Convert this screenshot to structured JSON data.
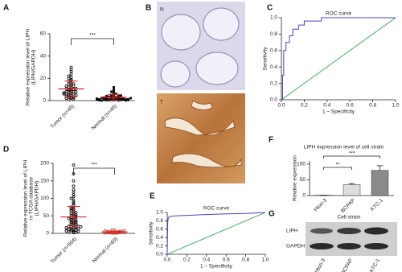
{
  "chart_data": [
    {
      "type": "dot",
      "panel": "A",
      "ylabel": [
        "Relative expression level of LIPH",
        "(LIPH/GAPDH)"
      ],
      "categories": [
        "Tumor (n=45)",
        "Normal (n=45)"
      ],
      "groups": [
        {
          "marker": "circle",
          "color": "#000000",
          "mean": 10.5,
          "sd": 7,
          "values": [
            2,
            3,
            4,
            5,
            5,
            6,
            6,
            7,
            7,
            8,
            8,
            8,
            9,
            9,
            10,
            10,
            10,
            11,
            11,
            12,
            12,
            13,
            14,
            15,
            16,
            17,
            18,
            19,
            20,
            21,
            22,
            24,
            26,
            28,
            30,
            1,
            1.5,
            2,
            3,
            4,
            5,
            6,
            7,
            13,
            15
          ]
        },
        {
          "marker": "square",
          "color": "#000000",
          "mean": 3,
          "sd": 2.5,
          "values": [
            0.5,
            0.5,
            0.8,
            1,
            1,
            1,
            1.2,
            1.5,
            1.5,
            2,
            2,
            2,
            2.5,
            3,
            3,
            3,
            3.5,
            4,
            4,
            4.5,
            5,
            5,
            6,
            7,
            8,
            9,
            10,
            12,
            1,
            0.3,
            0.2,
            0.4,
            0.6,
            0.7,
            0.9,
            1.1,
            1.3,
            1.8,
            2.2,
            2.8,
            0.1,
            0.2,
            0.3,
            0.5,
            0.8
          ]
        }
      ],
      "mean_color": "#e02020",
      "significance": "***",
      "ylim": [
        0,
        60
      ],
      "yticks": [
        0,
        20,
        40,
        60
      ]
    },
    {
      "type": "roc",
      "panel": "C",
      "title": "ROC curve",
      "xlabel": "1 – Specificity",
      "ylabel": "Sensitivity",
      "x": [
        0,
        0.01,
        0.01,
        0.02,
        0.02,
        0.04,
        0.04,
        0.07,
        0.07,
        0.1,
        0.1,
        0.15,
        0.15,
        0.2,
        0.2,
        0.35,
        0.35,
        1.0
      ],
      "y": [
        0,
        0,
        0.3,
        0.3,
        0.6,
        0.6,
        0.7,
        0.7,
        0.78,
        0.78,
        0.86,
        0.86,
        0.91,
        0.91,
        0.96,
        0.96,
        1.0,
        1.0
      ],
      "color": "#4b3fc9",
      "reference_color": "#2fa84f",
      "xlim": [
        0,
        1
      ],
      "ylim": [
        0,
        1
      ],
      "xticks": [
        {
          "value": 0,
          "label": "0.0"
        },
        {
          "value": 0.2,
          "label": "0.2"
        },
        {
          "value": 0.4,
          "label": "0.4"
        },
        {
          "value": 0.6,
          "label": "0.6"
        },
        {
          "value": 0.8,
          "label": "0.8"
        },
        {
          "value": 1,
          "label": "1.0"
        }
      ],
      "yticks": [
        {
          "value": 0,
          "label": "0.0"
        },
        {
          "value": 0.2,
          "label": "0.2"
        },
        {
          "value": 0.4,
          "label": "0.4"
        },
        {
          "value": 0.6,
          "label": "0.6"
        },
        {
          "value": 0.8,
          "label": "0.8"
        },
        {
          "value": 1,
          "label": "1.0"
        }
      ]
    },
    {
      "type": "dot",
      "panel": "D",
      "ylabel": [
        "Relative expression level of LIPH",
        "in TCGA database",
        "(LIPH/GAPDH)"
      ],
      "categories": [
        "Tumor (n=504)",
        "Normal (n=60)"
      ],
      "groups": [
        {
          "marker": "circle",
          "color": "#000000",
          "mean": 47,
          "sd": 30,
          "values": [
            5,
            8,
            10,
            12,
            15,
            15,
            18,
            20,
            20,
            22,
            25,
            25,
            28,
            30,
            30,
            32,
            35,
            35,
            38,
            40,
            40,
            42,
            45,
            45,
            48,
            50,
            50,
            52,
            55,
            58,
            60,
            62,
            65,
            68,
            70,
            72,
            75,
            80,
            85,
            90,
            95,
            100,
            105,
            110,
            118,
            125,
            135,
            150,
            170,
            195,
            2,
            3,
            4,
            6,
            7,
            9,
            11,
            13,
            16,
            19
          ]
        },
        {
          "marker": "circle",
          "color": "#c0392b",
          "mean": 4,
          "sd": 3,
          "values": [
            0.5,
            1,
            1,
            1.5,
            2,
            2,
            2.5,
            3,
            3,
            4,
            4,
            5,
            5,
            6,
            7,
            8,
            9,
            10,
            1,
            2
          ]
        }
      ],
      "mean_color": "#e02020",
      "significance": "***",
      "ylim": [
        0,
        200
      ],
      "yticks": [
        0,
        50,
        100,
        150,
        200
      ]
    },
    {
      "type": "roc",
      "panel": "E",
      "title": "ROC curve",
      "xlabel": "1 – Specificity",
      "ylabel": "Sensitivity",
      "x": [
        0,
        0.005,
        0.01,
        0.02,
        0.05,
        0.1,
        0.2,
        0.3,
        0.5,
        0.7,
        0.85,
        1.0
      ],
      "y": [
        0,
        0.75,
        0.86,
        0.9,
        0.91,
        0.92,
        0.93,
        0.94,
        0.96,
        0.97,
        0.98,
        1.0
      ],
      "color": "#4b3fc9",
      "reference_color": "#2fa84f",
      "xlim": [
        0,
        1
      ],
      "ylim": [
        0,
        1
      ],
      "xticks": [
        {
          "value": 0,
          "label": "0.0"
        },
        {
          "value": 0.2,
          "label": "0.2"
        },
        {
          "value": 0.4,
          "label": "0.4"
        },
        {
          "value": 0.6,
          "label": "0.6"
        },
        {
          "value": 0.8,
          "label": "0.8"
        },
        {
          "value": 1,
          "label": "1.0"
        }
      ],
      "yticks": [
        {
          "value": 0,
          "label": "0.0"
        },
        {
          "value": 0.2,
          "label": "0.2"
        },
        {
          "value": 0.4,
          "label": "0.4"
        },
        {
          "value": 0.6,
          "label": "0.6"
        },
        {
          "value": 0.8,
          "label": "0.8"
        },
        {
          "value": 1,
          "label": "1.0"
        }
      ]
    },
    {
      "type": "bar",
      "panel": "F",
      "title": "LIPH expression level of cell strain",
      "ylabel": "Relative expression",
      "categories": [
        "Htori-3",
        "BCPAP",
        "KTC-1"
      ],
      "values": [
        1,
        35,
        80
      ],
      "errors": [
        0,
        3,
        15
      ],
      "colors": [
        "#111111",
        "#dddddd",
        "#8a8a8a"
      ],
      "annotations": [
        "**",
        "***"
      ],
      "ylim": [
        0,
        110
      ],
      "yticks": [
        0,
        50,
        100
      ]
    }
  ],
  "image_panel": {
    "panel": "B",
    "labels": [
      "N",
      "T"
    ]
  },
  "blot_panel": {
    "panel": "G",
    "title": "Cell strain",
    "rows": [
      "LIPH",
      "GAPDH"
    ],
    "lanes": [
      "Htori-3",
      "BCPAP",
      "KTC-1"
    ]
  }
}
